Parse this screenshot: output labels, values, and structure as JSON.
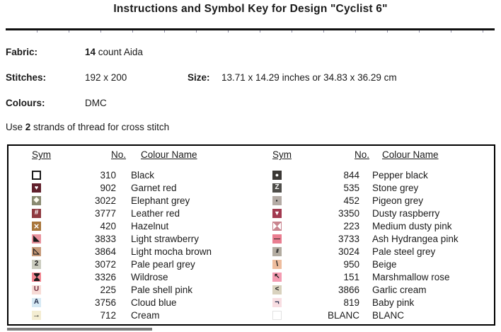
{
  "title": "Instructions and Symbol Key for Design \"Cyclist 6\"",
  "info": {
    "fabric_label": "Fabric:",
    "fabric_value_bold": "14",
    "fabric_value_rest": " count Aida",
    "stitches_label": "Stitches:",
    "stitches_value": "192 x 200",
    "size_label": "Size:",
    "size_value": "13.71 x 14.29 inches or 34.83 x 36.29 cm",
    "colours_label": "Colours:",
    "colours_value": "DMC",
    "strands_prefix": "Use ",
    "strands_bold": "2",
    "strands_suffix": " strands of thread for cross stitch"
  },
  "key_table": {
    "headers": [
      "Sym",
      "No.",
      "Colour Name"
    ],
    "left_rows": [
      {
        "no": "310",
        "name": "Black",
        "sym": {
          "glyph": "",
          "bg": "#ffffff",
          "border": "2px solid #1a1a1a"
        }
      },
      {
        "no": "902",
        "name": "Garnet red",
        "sym": {
          "glyph": "♥",
          "fg": "#ffffff",
          "bg": "#61202c",
          "fs": 9
        }
      },
      {
        "no": "3022",
        "name": "Elephant grey",
        "sym": {
          "glyph": "◆",
          "fg": "#fdfbee",
          "bg": "#8a8a71",
          "fs": 10
        }
      },
      {
        "no": "3777",
        "name": "Leather red",
        "sym": {
          "glyph": "#",
          "fg": "#ffffff",
          "bg": "#8f3940",
          "fs": 10
        }
      },
      {
        "no": "420",
        "name": "Hazelnut",
        "sym": {
          "glyph": "×",
          "fg": "#ffffff",
          "bg": "#a9763b",
          "fs": 13
        }
      },
      {
        "no": "3833",
        "name": "Light strawberry",
        "sym": {
          "glyph": "◣",
          "fg": "#1a1a1a",
          "bg": "#e9939e",
          "fs": 11
        }
      },
      {
        "no": "3864",
        "name": "Light mocha brown",
        "sym": {
          "glyph": "◺",
          "fg": "#1a1a1a",
          "bg": "#c79b7a",
          "fs": 11
        }
      },
      {
        "no": "3072",
        "name": "Pale pearl grey",
        "sym": {
          "glyph": "2",
          "fg": "#1a1a1a",
          "bg": "#cbccbf",
          "fs": 10
        }
      },
      {
        "no": "3326",
        "name": "Wildrose",
        "sym": {
          "shape": "hourglass",
          "fg": "#1a1a1a",
          "bg": "#f28691"
        }
      },
      {
        "no": "225",
        "name": "Pale shell pink",
        "sym": {
          "glyph": "U",
          "fg": "#6e2639",
          "bg": "#f7dbd6",
          "fs": 10
        }
      },
      {
        "no": "3756",
        "name": "Cloud blue",
        "sym": {
          "glyph": "A",
          "fg": "#26324e",
          "bg": "#d6e9f4",
          "fs": 10
        }
      },
      {
        "no": "712",
        "name": "Cream",
        "sym": {
          "glyph": "→",
          "fg": "#1a1a1a",
          "bg": "#f4edd2",
          "fs": 11
        }
      }
    ],
    "right_rows": [
      {
        "no": "844",
        "name": "Pepper black",
        "sym": {
          "glyph": "●",
          "fg": "#ffffff",
          "bg": "#3b3835",
          "fs": 9
        }
      },
      {
        "no": "535",
        "name": "Stone grey",
        "sym": {
          "glyph": "Z",
          "fg": "#ffffff",
          "bg": "#4f4e4a",
          "fs": 10
        }
      },
      {
        "no": "452",
        "name": "Pigeon grey",
        "sym": {
          "glyph": "·",
          "fg": "#1a1a1a",
          "bg": "#b4aba5",
          "fs": 14
        }
      },
      {
        "no": "3350",
        "name": "Dusty raspberry",
        "sym": {
          "glyph": "▼",
          "fg": "#ffffff",
          "bg": "#a23a50",
          "fs": 9
        }
      },
      {
        "no": "223",
        "name": "Medium dusty pink",
        "sym": {
          "shape": "bowtie",
          "fg": "#ffffff",
          "bg": "#c9858f"
        }
      },
      {
        "no": "3733",
        "name": "Ash Hydrangea pink",
        "sym": {
          "glyph": "—",
          "fg": "#1a1a1a",
          "bg": "#ea7e91",
          "fs": 9
        }
      },
      {
        "no": "3024",
        "name": "Pale steel grey",
        "sym": {
          "glyph": "///",
          "fg": "#2a2a2a",
          "bg": "#b3aca1",
          "fs": 7
        }
      },
      {
        "no": "950",
        "name": "Beige",
        "sym": {
          "glyph": "\\",
          "fg": "#1a1a1a",
          "bg": "#eebd9e",
          "fs": 11
        }
      },
      {
        "no": "151",
        "name": "Marshmallow rose",
        "sym": {
          "glyph": "↖",
          "fg": "#1a1a1a",
          "bg": "#f49cb2",
          "fs": 10
        }
      },
      {
        "no": "3866",
        "name": "Garlic cream",
        "sym": {
          "glyph": "<",
          "fg": "#1a1a1a",
          "bg": "#d9d2be",
          "fs": 10
        }
      },
      {
        "no": "819",
        "name": "Baby pink",
        "sym": {
          "glyph": "¬",
          "fg": "#2a3050",
          "bg": "#f8dee2",
          "fs": 11
        }
      },
      {
        "no": "BLANC",
        "name": "BLANC",
        "sym": {
          "glyph": "",
          "bg": "#ffffff",
          "border": "1px solid #e2e2e2"
        }
      }
    ]
  }
}
